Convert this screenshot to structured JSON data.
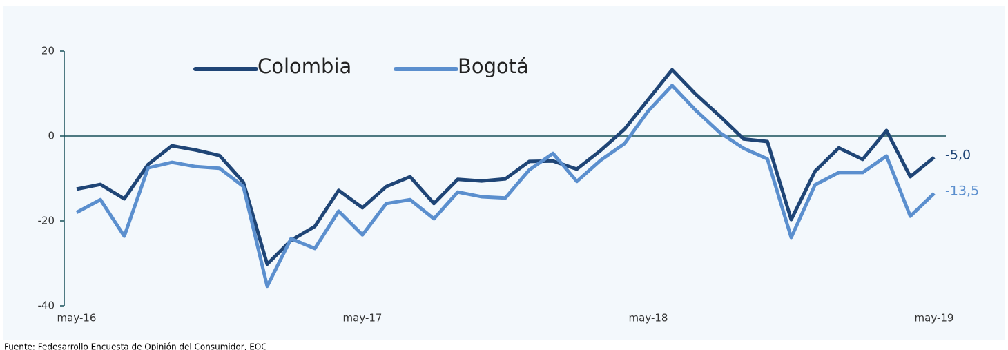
{
  "chart_data": {
    "type": "line",
    "categories": [
      "may-16",
      null,
      null,
      null,
      null,
      null,
      null,
      null,
      null,
      null,
      null,
      null,
      "may-17",
      null,
      null,
      null,
      null,
      null,
      null,
      null,
      null,
      null,
      null,
      null,
      "may-18",
      null,
      null,
      null,
      null,
      null,
      null,
      null,
      null,
      null,
      null,
      null,
      "may-19"
    ],
    "series": [
      {
        "name": "Colombia",
        "color": "#1f4576",
        "values": [
          -12.5,
          -11.4,
          -14.8,
          -6.7,
          -2.3,
          -3.3,
          -4.6,
          -10.9,
          -30.2,
          -24.6,
          -21.3,
          -12.8,
          -16.9,
          -11.9,
          -9.6,
          -15.9,
          -10.2,
          -10.6,
          -10.1,
          -6.0,
          -5.9,
          -7.8,
          -3.4,
          1.6,
          8.6,
          15.6,
          9.8,
          4.7,
          -0.7,
          -1.3,
          -19.7,
          -8.3,
          -2.8,
          -5.5,
          1.3,
          -9.6,
          -5.0
        ],
        "value_labels": [
          null,
          null,
          null,
          null,
          null,
          null,
          null,
          null,
          null,
          null,
          null,
          null,
          null,
          null,
          null,
          null,
          null,
          null,
          null,
          null,
          null,
          null,
          null,
          null,
          null,
          null,
          null,
          null,
          null,
          null,
          null,
          null,
          null,
          null,
          null,
          null,
          "-5,0"
        ]
      },
      {
        "name": "Bogotá",
        "color": "#5b8fce",
        "values": [
          -18.0,
          -15.0,
          -23.6,
          -7.5,
          -6.2,
          -7.2,
          -7.6,
          -11.9,
          -35.4,
          -24.2,
          -26.5,
          -17.7,
          -23.3,
          -15.9,
          -15.0,
          -19.5,
          -13.2,
          -14.3,
          -14.6,
          -8.0,
          -4.1,
          -10.7,
          -5.7,
          -1.8,
          5.9,
          11.9,
          6.0,
          0.8,
          -2.9,
          -5.4,
          -23.9,
          -11.5,
          -8.6,
          -8.6,
          -4.7,
          -18.9,
          -13.5
        ],
        "value_labels": [
          null,
          null,
          null,
          null,
          null,
          null,
          null,
          null,
          null,
          null,
          null,
          null,
          null,
          null,
          null,
          null,
          null,
          null,
          null,
          null,
          null,
          null,
          null,
          null,
          null,
          null,
          null,
          null,
          null,
          null,
          null,
          null,
          null,
          null,
          null,
          null,
          "-13,5"
        ]
      }
    ],
    "ylim": [
      -40,
      20
    ],
    "yticks": [
      -40,
      -20,
      0,
      20
    ],
    "legend": "top",
    "source": "Fuente: Fedesarrollo Encuesta de Opinión del Consumidor, EOC"
  }
}
